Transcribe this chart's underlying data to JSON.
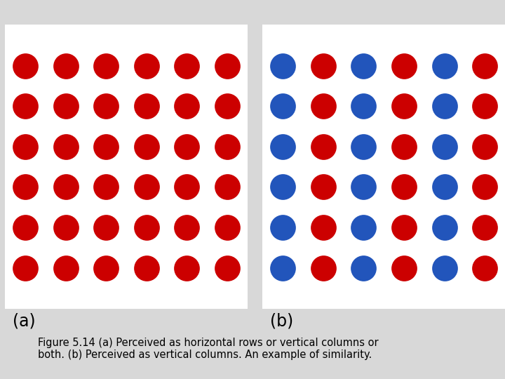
{
  "fig_width": 7.2,
  "fig_height": 5.4,
  "bg_color": "#d8d8d8",
  "panel_bg": "#ffffff",
  "red_color": "#cc0000",
  "blue_color": "#2255bb",
  "rows": 6,
  "cols": 6,
  "panel_a_label": "(a)",
  "panel_b_label": "(b)",
  "caption": "Figure 5.14 (a) Perceived as horizontal rows or vertical columns or\nboth. (b) Perceived as vertical columns. An example of similarity.",
  "caption_fontsize": 10.5,
  "label_fontsize": 17
}
